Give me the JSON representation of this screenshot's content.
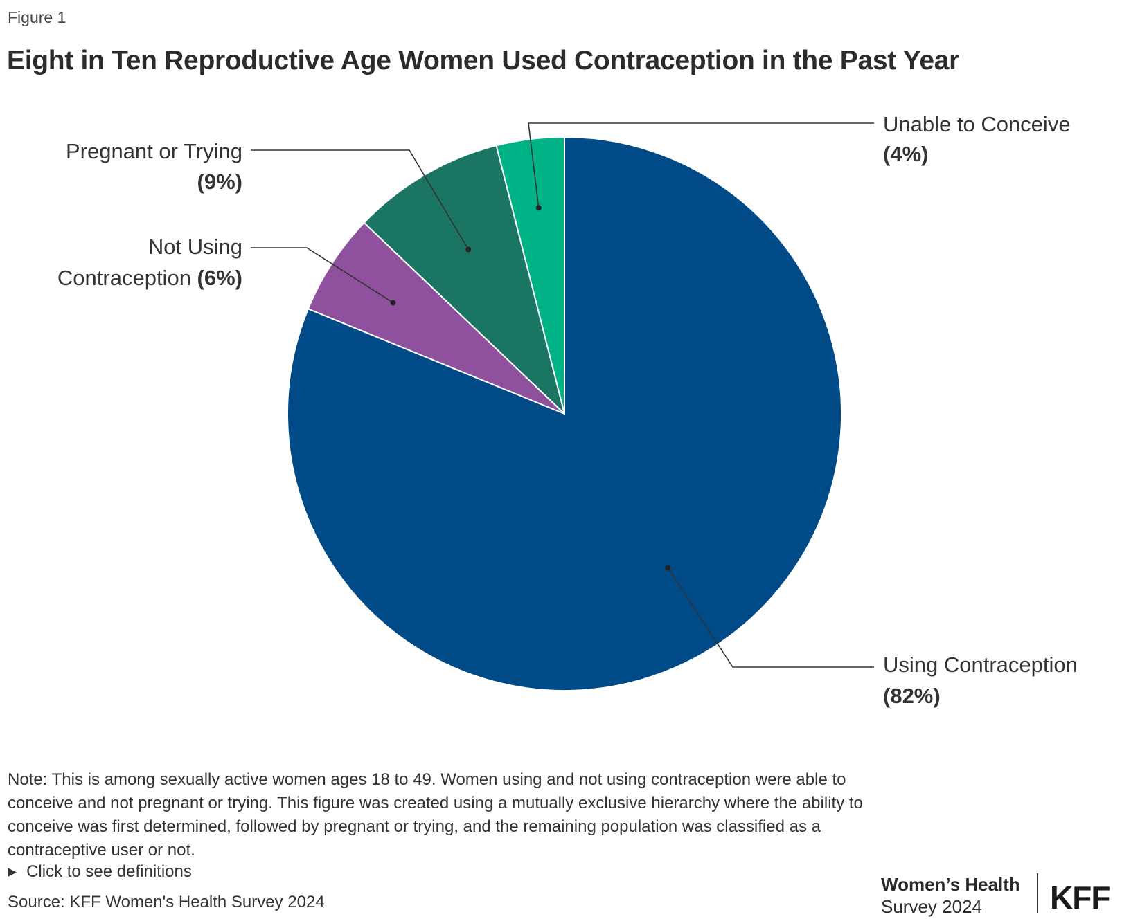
{
  "figure_label": "Figure 1",
  "title": "Eight in Ten Reproductive Age Women Used Contraception in the Past Year",
  "chart_data": {
    "type": "pie",
    "title": "Eight in Ten Reproductive Age Women Used Contraception in the Past Year",
    "start_angle_deg": 0,
    "direction": "counterclockwise",
    "slices": [
      {
        "label": "Unable to Conceive",
        "value": 4,
        "display": "(4%)",
        "color": "#00b386"
      },
      {
        "label": "Pregnant or Trying",
        "value": 9,
        "display": "(9%)",
        "color": "#1a7563"
      },
      {
        "label": "Not Using Contraception",
        "value": 6,
        "display": "(6%)",
        "color": "#8f519d"
      },
      {
        "label": "Using Contraception",
        "value": 82,
        "display": "(82%)",
        "color": "#004a87"
      }
    ]
  },
  "labels": {
    "unable_line1": "Unable to Conceive",
    "unable_pct": "(4%)",
    "pregnant_line1": "Pregnant or Trying",
    "pregnant_pct": "(9%)",
    "notusing_line1": "Not Using",
    "notusing_line2": "Contraception ",
    "notusing_pct": "(6%)",
    "using_line1": "Using Contraception",
    "using_pct": "(82%)"
  },
  "note": "Note: This is among sexually active women ages 18 to 49. Women using and not using contraception were able to conceive and not pregnant or trying. This figure was created using a mutually exclusive hierarchy where the ability to conceive was first determined, followed by pregnant or trying, and the remaining population was classified as a contraceptive user or not.",
  "definitions_link": "Click to see definitions",
  "source": "Source: KFF Women's Health Survey 2024",
  "brand": {
    "line1": "Women’s Health",
    "line2": "Survey 2024",
    "logo": "KFF"
  }
}
